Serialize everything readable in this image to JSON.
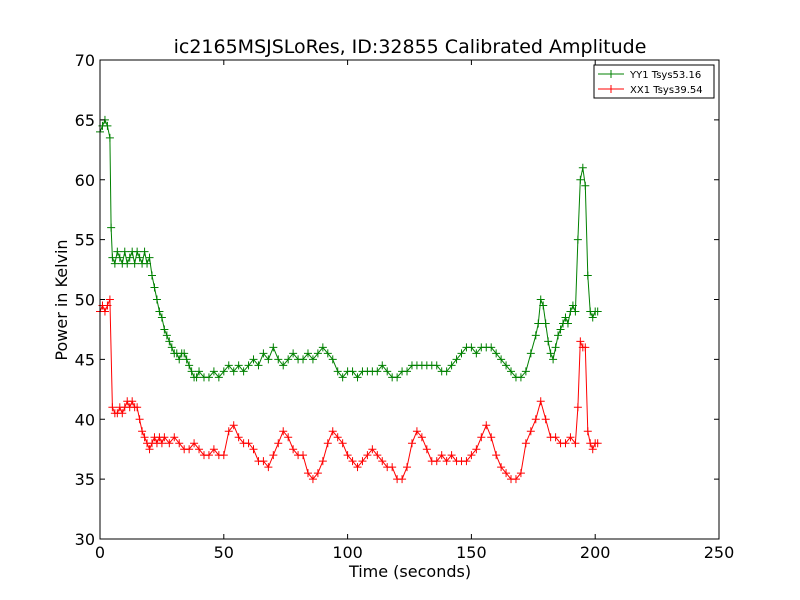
{
  "chart_data": {
    "type": "line",
    "title": "ic2165MSJSLoRes, ID:32855 Calibrated Amplitude",
    "xlabel": "Time (seconds)",
    "ylabel": "Power in Kelvin",
    "xlim": [
      0,
      250
    ],
    "ylim": [
      30,
      70
    ],
    "xticks": [
      "0",
      "50",
      "100",
      "150",
      "200",
      "250"
    ],
    "yticks": [
      "30",
      "35",
      "40",
      "45",
      "50",
      "55",
      "60",
      "65",
      "70"
    ],
    "grid": false,
    "legend_position": "top-right",
    "marker": "+",
    "series": [
      {
        "name": "YY1 Tsys53.16",
        "color": "#008000",
        "points": [
          [
            0,
            64
          ],
          [
            1,
            64.5
          ],
          [
            2,
            65
          ],
          [
            3,
            64.5
          ],
          [
            4,
            63.5
          ],
          [
            4.5,
            56
          ],
          [
            5,
            53.5
          ],
          [
            6,
            53
          ],
          [
            7,
            54
          ],
          [
            8,
            53.5
          ],
          [
            9,
            53
          ],
          [
            10,
            54
          ],
          [
            11,
            53
          ],
          [
            12,
            53.5
          ],
          [
            13,
            54
          ],
          [
            14,
            53
          ],
          [
            15,
            54
          ],
          [
            16,
            53.5
          ],
          [
            17,
            53
          ],
          [
            18,
            54
          ],
          [
            19,
            53
          ],
          [
            20,
            53.5
          ],
          [
            21,
            52
          ],
          [
            22,
            51
          ],
          [
            23,
            50
          ],
          [
            24,
            49
          ],
          [
            25,
            48.5
          ],
          [
            26,
            47.5
          ],
          [
            27,
            47
          ],
          [
            28,
            46.5
          ],
          [
            29,
            46
          ],
          [
            30,
            45.5
          ],
          [
            31,
            45.5
          ],
          [
            32,
            45
          ],
          [
            33,
            45.5
          ],
          [
            34,
            45.5
          ],
          [
            35,
            45
          ],
          [
            36,
            44.5
          ],
          [
            37,
            44
          ],
          [
            38,
            43.5
          ],
          [
            39,
            43.5
          ],
          [
            40,
            44
          ],
          [
            42,
            43.5
          ],
          [
            44,
            43.5
          ],
          [
            46,
            44
          ],
          [
            48,
            43.5
          ],
          [
            50,
            44
          ],
          [
            52,
            44.5
          ],
          [
            54,
            44
          ],
          [
            56,
            44.5
          ],
          [
            58,
            44
          ],
          [
            60,
            44.5
          ],
          [
            62,
            45
          ],
          [
            64,
            44.5
          ],
          [
            66,
            45.5
          ],
          [
            68,
            45
          ],
          [
            70,
            46
          ],
          [
            72,
            45
          ],
          [
            74,
            44.5
          ],
          [
            76,
            45
          ],
          [
            78,
            45.5
          ],
          [
            80,
            45
          ],
          [
            82,
            45
          ],
          [
            84,
            45.5
          ],
          [
            86,
            45
          ],
          [
            88,
            45.5
          ],
          [
            90,
            46
          ],
          [
            92,
            45.5
          ],
          [
            94,
            45
          ],
          [
            96,
            44
          ],
          [
            98,
            43.5
          ],
          [
            100,
            44
          ],
          [
            102,
            44
          ],
          [
            104,
            43.5
          ],
          [
            106,
            44
          ],
          [
            108,
            44
          ],
          [
            110,
            44
          ],
          [
            112,
            44
          ],
          [
            114,
            44.5
          ],
          [
            116,
            44
          ],
          [
            118,
            43.5
          ],
          [
            120,
            43.5
          ],
          [
            122,
            44
          ],
          [
            124,
            44
          ],
          [
            126,
            44.5
          ],
          [
            128,
            44.5
          ],
          [
            130,
            44.5
          ],
          [
            132,
            44.5
          ],
          [
            134,
            44.5
          ],
          [
            136,
            44.5
          ],
          [
            138,
            44
          ],
          [
            140,
            44
          ],
          [
            142,
            44.5
          ],
          [
            144,
            45
          ],
          [
            146,
            45.5
          ],
          [
            148,
            46
          ],
          [
            150,
            46
          ],
          [
            152,
            45.5
          ],
          [
            154,
            46
          ],
          [
            156,
            46
          ],
          [
            158,
            46
          ],
          [
            160,
            45.5
          ],
          [
            162,
            45
          ],
          [
            164,
            44.5
          ],
          [
            166,
            44
          ],
          [
            168,
            43.5
          ],
          [
            170,
            43.5
          ],
          [
            172,
            44
          ],
          [
            174,
            45.5
          ],
          [
            176,
            47
          ],
          [
            177,
            48
          ],
          [
            178,
            50
          ],
          [
            179,
            49.5
          ],
          [
            180,
            48
          ],
          [
            181,
            46.5
          ],
          [
            182,
            45.5
          ],
          [
            183,
            45
          ],
          [
            184,
            46
          ],
          [
            185,
            47
          ],
          [
            186,
            47.5
          ],
          [
            187,
            48
          ],
          [
            188,
            48.5
          ],
          [
            189,
            48
          ],
          [
            190,
            49
          ],
          [
            191,
            49.5
          ],
          [
            192,
            49
          ],
          [
            193,
            55
          ],
          [
            194,
            60
          ],
          [
            195,
            61
          ],
          [
            196,
            59.5
          ],
          [
            197,
            52
          ],
          [
            198,
            49
          ],
          [
            199,
            48.5
          ],
          [
            200,
            49
          ],
          [
            201,
            49
          ]
        ]
      },
      {
        "name": "XX1 Tsys39.54",
        "color": "#ff0000",
        "points": [
          [
            0,
            49
          ],
          [
            1,
            49.5
          ],
          [
            2,
            49
          ],
          [
            3,
            49.5
          ],
          [
            4,
            50
          ],
          [
            5,
            41
          ],
          [
            6,
            40.5
          ],
          [
            7,
            40.5
          ],
          [
            8,
            41
          ],
          [
            9,
            40.5
          ],
          [
            10,
            41
          ],
          [
            11,
            41.5
          ],
          [
            12,
            41
          ],
          [
            13,
            41.5
          ],
          [
            14,
            41
          ],
          [
            15,
            41
          ],
          [
            16,
            40
          ],
          [
            17,
            39
          ],
          [
            18,
            38.5
          ],
          [
            19,
            38
          ],
          [
            20,
            37.5
          ],
          [
            21,
            38
          ],
          [
            22,
            38.5
          ],
          [
            23,
            38
          ],
          [
            24,
            38.5
          ],
          [
            25,
            38
          ],
          [
            26,
            38.5
          ],
          [
            28,
            38
          ],
          [
            30,
            38.5
          ],
          [
            32,
            38
          ],
          [
            34,
            37.5
          ],
          [
            36,
            37.5
          ],
          [
            38,
            38
          ],
          [
            40,
            37.5
          ],
          [
            42,
            37
          ],
          [
            44,
            37
          ],
          [
            46,
            37.5
          ],
          [
            48,
            37
          ],
          [
            50,
            37
          ],
          [
            52,
            39
          ],
          [
            54,
            39.5
          ],
          [
            56,
            38.5
          ],
          [
            58,
            38
          ],
          [
            60,
            38
          ],
          [
            62,
            37.5
          ],
          [
            64,
            36.5
          ],
          [
            66,
            36.5
          ],
          [
            68,
            36
          ],
          [
            70,
            37
          ],
          [
            72,
            38
          ],
          [
            74,
            39
          ],
          [
            76,
            38.5
          ],
          [
            78,
            37.5
          ],
          [
            80,
            37
          ],
          [
            82,
            37
          ],
          [
            84,
            35.5
          ],
          [
            86,
            35
          ],
          [
            88,
            35.5
          ],
          [
            90,
            36.5
          ],
          [
            92,
            38
          ],
          [
            94,
            39
          ],
          [
            96,
            38.5
          ],
          [
            98,
            38
          ],
          [
            100,
            37
          ],
          [
            102,
            36.5
          ],
          [
            104,
            36
          ],
          [
            106,
            36.5
          ],
          [
            108,
            37
          ],
          [
            110,
            37.5
          ],
          [
            112,
            37
          ],
          [
            114,
            36.5
          ],
          [
            116,
            36
          ],
          [
            118,
            36
          ],
          [
            120,
            35
          ],
          [
            122,
            35
          ],
          [
            124,
            36
          ],
          [
            126,
            38
          ],
          [
            128,
            39
          ],
          [
            130,
            38.5
          ],
          [
            132,
            37.5
          ],
          [
            134,
            36.5
          ],
          [
            136,
            36.5
          ],
          [
            138,
            37
          ],
          [
            140,
            36.5
          ],
          [
            142,
            37
          ],
          [
            144,
            36.5
          ],
          [
            146,
            36.5
          ],
          [
            148,
            36.5
          ],
          [
            150,
            37
          ],
          [
            152,
            37.5
          ],
          [
            154,
            38.5
          ],
          [
            156,
            39.5
          ],
          [
            158,
            38.5
          ],
          [
            160,
            37
          ],
          [
            162,
            36
          ],
          [
            164,
            35.5
          ],
          [
            166,
            35
          ],
          [
            168,
            35
          ],
          [
            170,
            35.5
          ],
          [
            172,
            38
          ],
          [
            174,
            39
          ],
          [
            176,
            40
          ],
          [
            178,
            41.5
          ],
          [
            180,
            40
          ],
          [
            182,
            38.5
          ],
          [
            184,
            38.5
          ],
          [
            186,
            38
          ],
          [
            188,
            38
          ],
          [
            190,
            38.5
          ],
          [
            192,
            38
          ],
          [
            193,
            41
          ],
          [
            194,
            46.5
          ],
          [
            195,
            46
          ],
          [
            196,
            46
          ],
          [
            197,
            39
          ],
          [
            198,
            38
          ],
          [
            199,
            37.5
          ],
          [
            200,
            38
          ],
          [
            201,
            38
          ]
        ]
      }
    ]
  }
}
